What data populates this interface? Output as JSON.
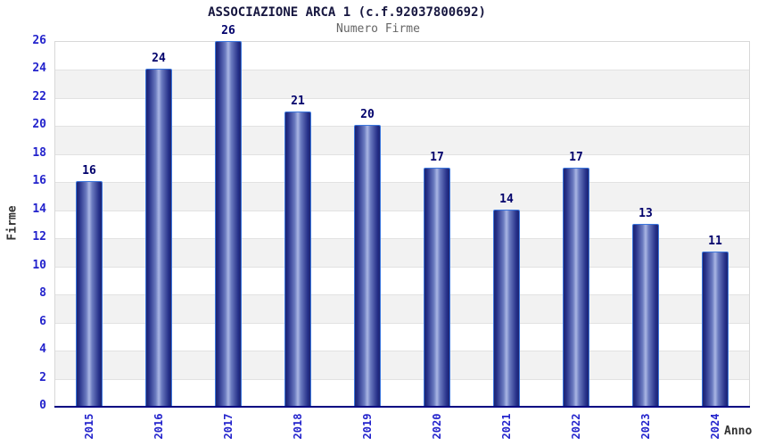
{
  "chart_data": {
    "type": "bar",
    "title": "ASSOCIAZIONE ARCA 1 (c.f.92037800692)",
    "subtitle": "Numero Firme",
    "xlabel": "Anno",
    "ylabel": "Firme",
    "categories": [
      "2015",
      "2016",
      "2017",
      "2018",
      "2019",
      "2020",
      "2021",
      "2022",
      "2023",
      "2024"
    ],
    "values": [
      16,
      24,
      26,
      21,
      20,
      17,
      14,
      17,
      13,
      11
    ],
    "ylim": [
      0,
      26
    ],
    "ytick_step": 2,
    "ytick_labels": [
      "0",
      "2",
      "4",
      "6",
      "8",
      "10",
      "12",
      "14",
      "16",
      "18",
      "20",
      "22",
      "24",
      "26"
    ],
    "grid": "alternating horizontal bands every 2 units",
    "legend": "none",
    "bar_value_labels_shown": true
  },
  "colors": {
    "background": "#ffffff",
    "title": "#16163f",
    "subtitle": "#666666",
    "tick_labels": "#2323cc",
    "value_labels": "#00006b",
    "bar_gradient_dark": "#1c2470",
    "bar_gradient_light": "#aab6e4",
    "bar_border": "#3b76dd",
    "band_gray": "#f2f2f2",
    "band_white": "#ffffff",
    "gridline": "#e2e2e2",
    "plot_border": "#d8d8d8",
    "x_axis_line": "#000082",
    "axis_titles": "#333333"
  }
}
